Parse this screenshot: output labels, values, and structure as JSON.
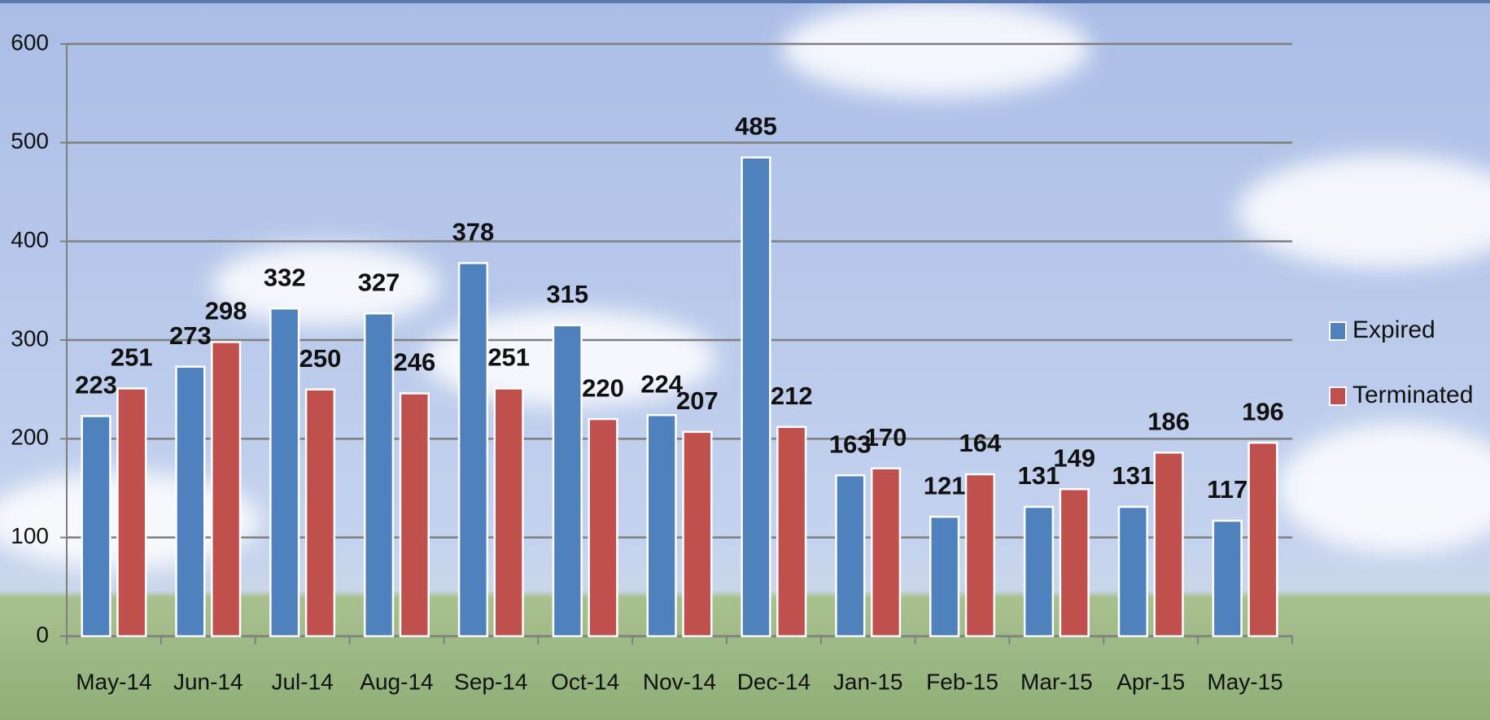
{
  "chart_data": {
    "type": "bar",
    "categories": [
      "May-14",
      "Jun-14",
      "Jul-14",
      "Aug-14",
      "Sep-14",
      "Oct-14",
      "Nov-14",
      "Dec-14",
      "Jan-15",
      "Feb-15",
      "Mar-15",
      "Apr-15",
      "May-15"
    ],
    "series": [
      {
        "name": "Expired",
        "color": "#4f81bd",
        "values": [
          223,
          273,
          332,
          327,
          378,
          315,
          224,
          485,
          163,
          121,
          131,
          131,
          117
        ]
      },
      {
        "name": "Terminated",
        "color": "#c0504d",
        "values": [
          251,
          298,
          250,
          246,
          251,
          220,
          207,
          212,
          170,
          164,
          149,
          186,
          196
        ]
      }
    ],
    "ylim": [
      0,
      600
    ],
    "yticks": [
      0,
      100,
      200,
      300,
      400,
      500,
      600
    ],
    "grid": true,
    "legend": "right"
  }
}
